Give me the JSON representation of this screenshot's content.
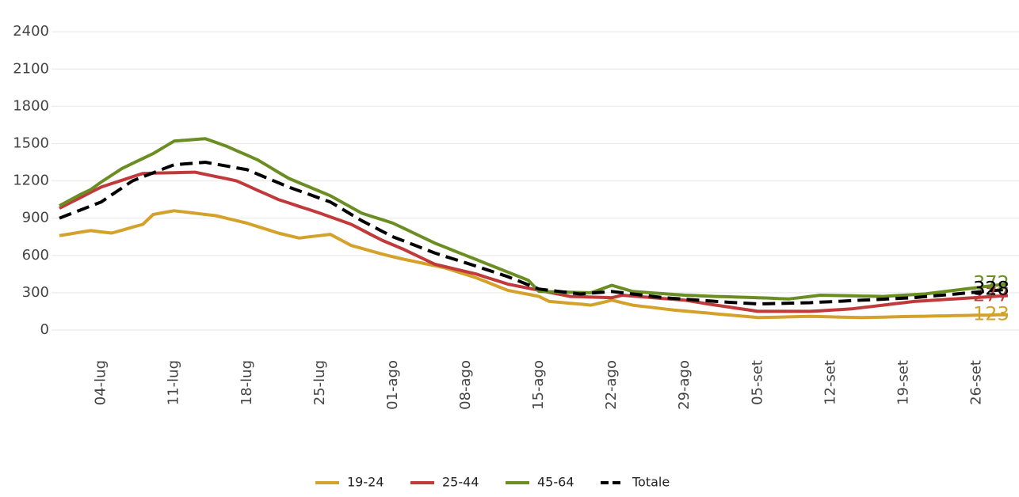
{
  "chart_data": {
    "type": "line",
    "categories": [
      null,
      null,
      null,
      null,
      "04-lug",
      null,
      null,
      null,
      null,
      null,
      null,
      "11-lug",
      null,
      null,
      null,
      null,
      null,
      null,
      "18-lug",
      null,
      null,
      null,
      null,
      null,
      null,
      "25-lug",
      null,
      null,
      null,
      null,
      null,
      null,
      "01-ago",
      null,
      null,
      null,
      null,
      null,
      null,
      "08-ago",
      null,
      null,
      null,
      null,
      null,
      null,
      "15-ago",
      null,
      null,
      null,
      null,
      null,
      null,
      "22-ago",
      null,
      null,
      null,
      null,
      null,
      null,
      "29-ago",
      null,
      null,
      null,
      null,
      null,
      null,
      "05-set",
      null,
      null,
      null,
      null,
      null,
      null,
      "12-set",
      null,
      null,
      null,
      null,
      null,
      null,
      "19-set",
      null,
      null,
      null,
      null,
      null,
      null,
      "26-set",
      null,
      null,
      null
    ],
    "series": [
      {
        "name": "19-24",
        "color": "#d4a12a",
        "values": [
          760,
          773,
          787,
          800,
          790,
          780,
          803,
          827,
          850,
          930,
          945,
          960,
          950,
          940,
          930,
          920,
          900,
          880,
          860,
          833,
          807,
          780,
          760,
          740,
          750,
          760,
          770,
          725,
          680,
          657,
          633,
          610,
          590,
          570,
          553,
          535,
          518,
          500,
          473,
          447,
          420,
          387,
          353,
          320,
          303,
          287,
          270,
          230,
          223,
          215,
          208,
          200,
          220,
          240,
          220,
          200,
          190,
          180,
          170,
          160,
          153,
          145,
          138,
          130,
          123,
          115,
          108,
          100,
          102,
          104,
          106,
          108,
          110,
          108,
          106,
          104,
          102,
          100,
          102,
          104,
          106,
          108,
          110,
          111,
          113,
          114,
          116,
          117,
          119,
          120,
          122,
          123
        ]
      },
      {
        "name": "25-44",
        "color": "#c0393b",
        "values": [
          980,
          1023,
          1065,
          1108,
          1150,
          1178,
          1205,
          1233,
          1260,
          1262,
          1264,
          1266,
          1268,
          1270,
          1253,
          1235,
          1218,
          1200,
          1163,
          1125,
          1088,
          1050,
          1023,
          995,
          968,
          940,
          910,
          880,
          850,
          807,
          763,
          720,
          685,
          650,
          610,
          570,
          530,
          510,
          490,
          470,
          450,
          423,
          397,
          370,
          353,
          337,
          320,
          303,
          287,
          270,
          268,
          265,
          263,
          260,
          280,
          273,
          267,
          260,
          253,
          247,
          240,
          227,
          213,
          200,
          188,
          175,
          163,
          150,
          150,
          150,
          150,
          150,
          150,
          155,
          160,
          165,
          170,
          180,
          190,
          200,
          210,
          220,
          230,
          235,
          240,
          246,
          251,
          256,
          261,
          267,
          272,
          277
        ]
      },
      {
        "name": "45-64",
        "color": "#6b8e23",
        "values": [
          1000,
          1045,
          1090,
          1130,
          1190,
          1245,
          1300,
          1340,
          1380,
          1420,
          1470,
          1520,
          1527,
          1533,
          1540,
          1510,
          1480,
          1443,
          1407,
          1370,
          1320,
          1270,
          1220,
          1185,
          1150,
          1115,
          1080,
          1033,
          987,
          940,
          913,
          887,
          860,
          820,
          780,
          740,
          700,
          667,
          633,
          600,
          567,
          533,
          500,
          467,
          433,
          400,
          310,
          308,
          306,
          304,
          302,
          300,
          330,
          360,
          335,
          310,
          304,
          298,
          292,
          286,
          280,
          277,
          273,
          270,
          268,
          265,
          263,
          260,
          257,
          253,
          250,
          260,
          270,
          280,
          278,
          277,
          275,
          273,
          272,
          270,
          275,
          280,
          285,
          290,
          300,
          311,
          321,
          331,
          341,
          352,
          362,
          372
        ]
      },
      {
        "name": "Totale",
        "color": "#000000",
        "dashed": true,
        "values": [
          900,
          933,
          965,
          998,
          1030,
          1087,
          1143,
          1200,
          1233,
          1265,
          1298,
          1330,
          1337,
          1343,
          1350,
          1335,
          1320,
          1305,
          1290,
          1255,
          1220,
          1185,
          1150,
          1120,
          1090,
          1060,
          1030,
          980,
          930,
          880,
          837,
          793,
          750,
          718,
          685,
          653,
          620,
          593,
          567,
          540,
          513,
          485,
          458,
          430,
          397,
          363,
          330,
          320,
          310,
          300,
          290,
          297,
          303,
          310,
          300,
          290,
          280,
          270,
          260,
          254,
          248,
          242,
          236,
          230,
          225,
          220,
          215,
          210,
          212,
          214,
          216,
          218,
          220,
          224,
          228,
          232,
          236,
          240,
          244,
          248,
          252,
          256,
          260,
          268,
          275,
          283,
          290,
          298,
          305,
          313,
          320,
          328
        ]
      }
    ],
    "ylim": [
      -100,
      2550
    ],
    "yticks": [
      0,
      300,
      600,
      900,
      1200,
      1500,
      1800,
      2100,
      2400
    ],
    "grid": true,
    "legend": "bottom"
  }
}
